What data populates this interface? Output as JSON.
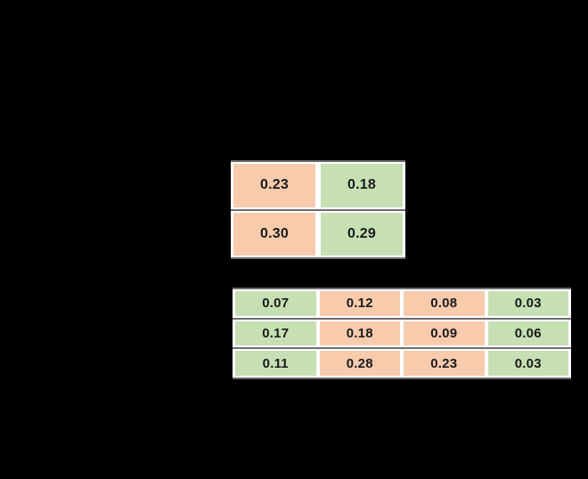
{
  "page": {
    "background": "#000000"
  },
  "colors": {
    "orange_cell": "#F8CBAD",
    "green_cell": "#C6E0B4",
    "rule": "#6e6e6e",
    "card_bg": "#ffffff",
    "text": "#1a1a1a"
  },
  "chart_data": [
    {
      "type": "table",
      "name": "table-2x2",
      "rows": [
        [
          "0.23",
          "0.18"
        ],
        [
          "0.30",
          "0.29"
        ]
      ],
      "cell_colors": [
        [
          "orange",
          "green"
        ],
        [
          "orange",
          "green"
        ]
      ]
    },
    {
      "type": "table",
      "name": "table-3x4",
      "rows": [
        [
          "0.07",
          "0.12",
          "0.08",
          "0.03"
        ],
        [
          "0.17",
          "0.18",
          "0.09",
          "0.06"
        ],
        [
          "0.11",
          "0.28",
          "0.23",
          "0.03"
        ]
      ],
      "cell_colors": [
        [
          "green",
          "orange",
          "orange",
          "green"
        ],
        [
          "green",
          "orange",
          "orange",
          "green"
        ],
        [
          "green",
          "orange",
          "orange",
          "green"
        ]
      ]
    }
  ]
}
